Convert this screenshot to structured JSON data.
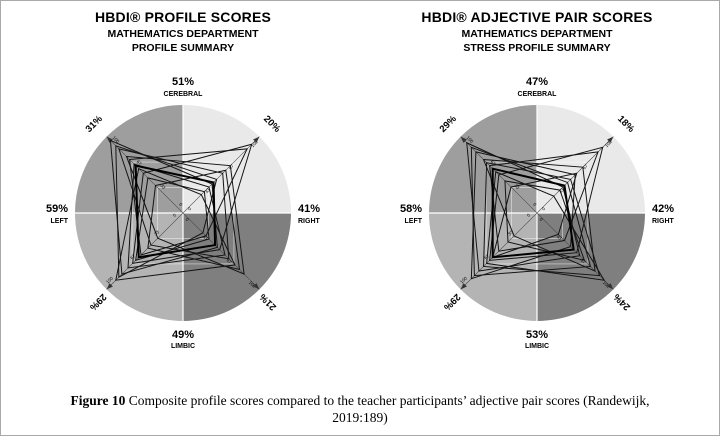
{
  "caption": {
    "label": "Figure 10",
    "line1": " Composite profile scores compared to the teacher participants’ adjective pair scores (Randewijk,",
    "line2": "2019:189)"
  },
  "chart_data": [
    {
      "type": "radar",
      "title": "HBDI® PROFILE SCORES",
      "subtitle_line1": "MATHEMATICS DEPARTMENT",
      "subtitle_line2": "PROFILE SUMMARY",
      "axes": [
        "A upper-left cerebral-left",
        "D upper-right cerebral-right",
        "C lower-right limbic-right",
        "B lower-left limbic-left"
      ],
      "outer_labels": {
        "top_value": "51%",
        "top_label": "CEREBRAL",
        "right_value": "41%",
        "right_label": "RIGHT",
        "bottom_value": "49%",
        "bottom_label": "LIMBIC",
        "left_value": "59%",
        "left_label": "LEFT"
      },
      "diagonal_values": {
        "upper_left": "31%",
        "upper_right": "20%",
        "lower_right": "21%",
        "lower_left": "29%"
      },
      "ring_ticks": [
        0,
        33,
        67,
        100
      ],
      "quadrant_colors": {
        "upper_left": "#9e9e9e",
        "upper_right": "#e9e9e9",
        "lower_right": "#7f7f7f",
        "lower_left": "#b4b4b4"
      },
      "profiles": [
        [
          95,
          38,
          45,
          80
        ],
        [
          70,
          84,
          30,
          55
        ],
        [
          58,
          24,
          68,
          88
        ],
        [
          84,
          52,
          60,
          42
        ],
        [
          46,
          28,
          34,
          62
        ],
        [
          74,
          62,
          80,
          33
        ],
        [
          52,
          90,
          48,
          66
        ],
        [
          88,
          44,
          26,
          84
        ],
        [
          36,
          56,
          74,
          46
        ],
        [
          64,
          34,
          55,
          72
        ]
      ],
      "composite_profile": [
        62,
        40,
        42,
        58
      ]
    },
    {
      "type": "radar",
      "title": "HBDI® ADJECTIVE PAIR SCORES",
      "subtitle_line1": "MATHEMATICS DEPARTMENT",
      "subtitle_line2": "STRESS PROFILE SUMMARY",
      "axes": [
        "A upper-left cerebral-left",
        "D upper-right cerebral-right",
        "C lower-right limbic-right",
        "B lower-left limbic-left"
      ],
      "outer_labels": {
        "top_value": "47%",
        "top_label": "CEREBRAL",
        "right_value": "42%",
        "right_label": "RIGHT",
        "bottom_value": "53%",
        "bottom_label": "LIMBIC",
        "left_value": "58%",
        "left_label": "LEFT"
      },
      "diagonal_values": {
        "upper_left": "29%",
        "upper_right": "18%",
        "lower_right": "24%",
        "lower_left": "29%"
      },
      "ring_ticks": [
        0,
        33,
        67,
        100
      ],
      "quadrant_colors": {
        "upper_left": "#9e9e9e",
        "upper_right": "#e9e9e9",
        "lower_right": "#7f7f7f",
        "lower_left": "#b4b4b4"
      },
      "profiles": [
        [
          92,
          34,
          56,
          76
        ],
        [
          62,
          80,
          36,
          50
        ],
        [
          54,
          22,
          88,
          66
        ],
        [
          80,
          50,
          44,
          86
        ],
        [
          42,
          30,
          62,
          38
        ],
        [
          70,
          60,
          76,
          30
        ],
        [
          50,
          86,
          52,
          62
        ],
        [
          86,
          40,
          70,
          82
        ],
        [
          34,
          52,
          28,
          58
        ],
        [
          66,
          44,
          82,
          70
        ]
      ],
      "composite_profile": [
        58,
        36,
        48,
        58
      ]
    }
  ]
}
